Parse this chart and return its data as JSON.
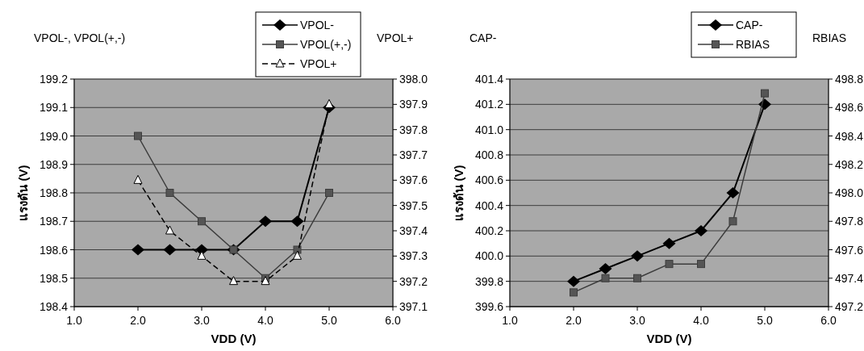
{
  "chart_data": [
    {
      "type": "line",
      "xlabel": "VDD (V)",
      "ylabel": "แรงดัน (V)",
      "y2label": "VPOL+",
      "annotations": [
        "VPOL-, VPOL(+,-)"
      ],
      "x": [
        2.0,
        2.5,
        3.0,
        3.5,
        4.0,
        4.5,
        5.0
      ],
      "xlim": [
        1.0,
        6.0
      ],
      "xticks": [
        {
          "value": 1,
          "label": "1.0"
        },
        {
          "value": 2,
          "label": "2.0"
        },
        {
          "value": 3,
          "label": "3.0"
        },
        {
          "value": 4,
          "label": "4.0"
        },
        {
          "value": 5,
          "label": "5.0"
        },
        {
          "value": 6,
          "label": "6.0"
        }
      ],
      "ylim": [
        198.4,
        199.2
      ],
      "yticks": [
        198.4,
        198.5,
        198.6,
        198.7,
        198.8,
        198.9,
        {
          "value": 199,
          "label": "199.0"
        },
        199.1,
        199.2
      ],
      "y2lim": [
        397.1,
        398.0
      ],
      "y2ticks": [
        397.1,
        397.2,
        397.3,
        397.4,
        397.5,
        397.6,
        397.7,
        397.8,
        397.9,
        {
          "value": 398,
          "label": "398.0"
        }
      ],
      "grid": "y",
      "legend": "top right",
      "series": [
        {
          "name": "VPOL-",
          "color": "#000000",
          "marker": "diamond",
          "line_style": "solid",
          "values": [
            198.6,
            198.6,
            198.6,
            198.6,
            198.7,
            198.7,
            199.1
          ]
        },
        {
          "name": "VPOL(+,-)",
          "color": "#3c3c3c",
          "marker": "square",
          "line_style": "solid",
          "values": [
            199.0,
            198.8,
            198.7,
            198.6,
            198.5,
            198.6,
            198.8
          ]
        },
        {
          "name": "VPOL+",
          "color": "#000000",
          "marker": "triangle",
          "line_style": "dashed",
          "axis": "y2",
          "values": [
            397.6,
            397.4,
            397.3,
            397.2,
            397.2,
            397.3,
            397.9
          ]
        }
      ]
    },
    {
      "type": "line",
      "xlabel": "VDD (V)",
      "ylabel": "แรงดัน (V)",
      "y2label": "RBIAS",
      "annotations": [
        "CAP-"
      ],
      "x": [
        2.0,
        2.5,
        3.0,
        3.5,
        4.0,
        4.5,
        5.0
      ],
      "xlim": [
        1.0,
        6.0
      ],
      "xticks": [
        {
          "value": 1,
          "label": "1.0"
        },
        {
          "value": 2,
          "label": "2.0"
        },
        {
          "value": 3,
          "label": "3.0"
        },
        {
          "value": 4,
          "label": "4.0"
        },
        {
          "value": 5,
          "label": "5.0"
        },
        {
          "value": 6,
          "label": "6.0"
        }
      ],
      "ylim": [
        399.6,
        401.4
      ],
      "yticks": [
        399.6,
        399.8,
        {
          "value": 400,
          "label": "400.0"
        },
        400.2,
        400.4,
        400.6,
        400.8,
        {
          "value": 401,
          "label": "401.0"
        },
        401.2,
        401.4
      ],
      "y2lim": [
        497.2,
        498.8
      ],
      "y2ticks": [
        497.2,
        497.4,
        497.6,
        497.8,
        {
          "value": 498,
          "label": "498.0"
        },
        498.2,
        498.4,
        498.6,
        498.8
      ],
      "grid": "y",
      "legend": "top right",
      "series": [
        {
          "name": "CAP-",
          "color": "#000000",
          "marker": "diamond",
          "line_style": "solid",
          "values": [
            399.8,
            399.9,
            400.0,
            400.1,
            400.2,
            400.5,
            401.2
          ]
        },
        {
          "name": "RBIAS",
          "color": "#3c3c3c",
          "marker": "square",
          "line_style": "solid",
          "axis": "y2",
          "values": [
            497.3,
            497.4,
            497.4,
            497.5,
            497.5,
            497.8,
            498.7
          ]
        }
      ]
    }
  ]
}
